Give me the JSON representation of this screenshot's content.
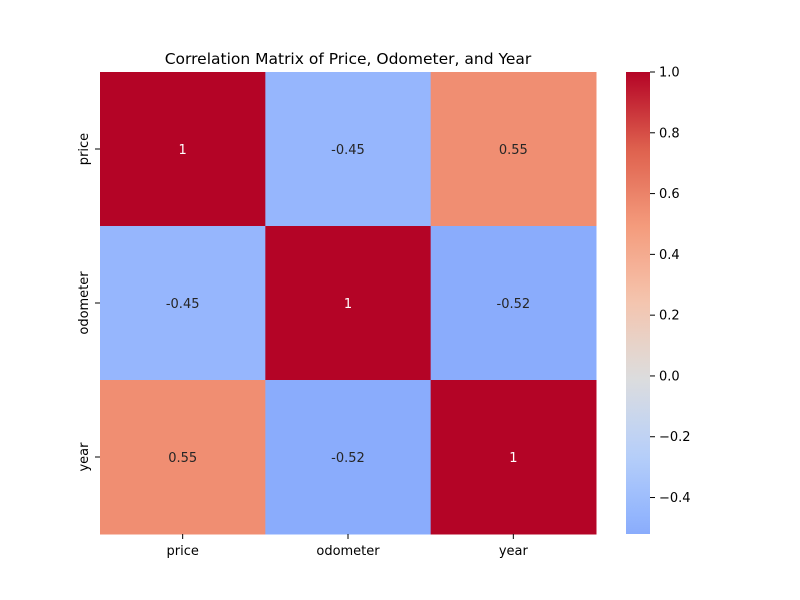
{
  "chart_data": {
    "type": "heatmap",
    "title": "Correlation Matrix of Price, Odometer, and Year",
    "xlabel": "",
    "ylabel": "",
    "x_categories": [
      "price",
      "odometer",
      "year"
    ],
    "y_categories": [
      "price",
      "odometer",
      "year"
    ],
    "values": [
      [
        1.0,
        -0.45,
        0.55
      ],
      [
        -0.45,
        1.0,
        -0.52
      ],
      [
        0.55,
        -0.52,
        1.0
      ]
    ],
    "annotations": [
      [
        "1",
        "-0.45",
        "0.55"
      ],
      [
        "-0.45",
        "1",
        "-0.52"
      ],
      [
        "0.55",
        "-0.52",
        "1"
      ]
    ],
    "colormap": "coolwarm",
    "colorbar": {
      "vmin": -0.52,
      "vmax": 1.0,
      "center": 0.0,
      "ticks": [
        -0.4,
        -0.2,
        0.0,
        0.2,
        0.4,
        0.6,
        0.8,
        1.0
      ],
      "tick_labels": [
        "−0.4",
        "−0.2",
        "0.0",
        "0.2",
        "0.4",
        "0.6",
        "0.8",
        "1.0"
      ]
    },
    "grid": false
  }
}
